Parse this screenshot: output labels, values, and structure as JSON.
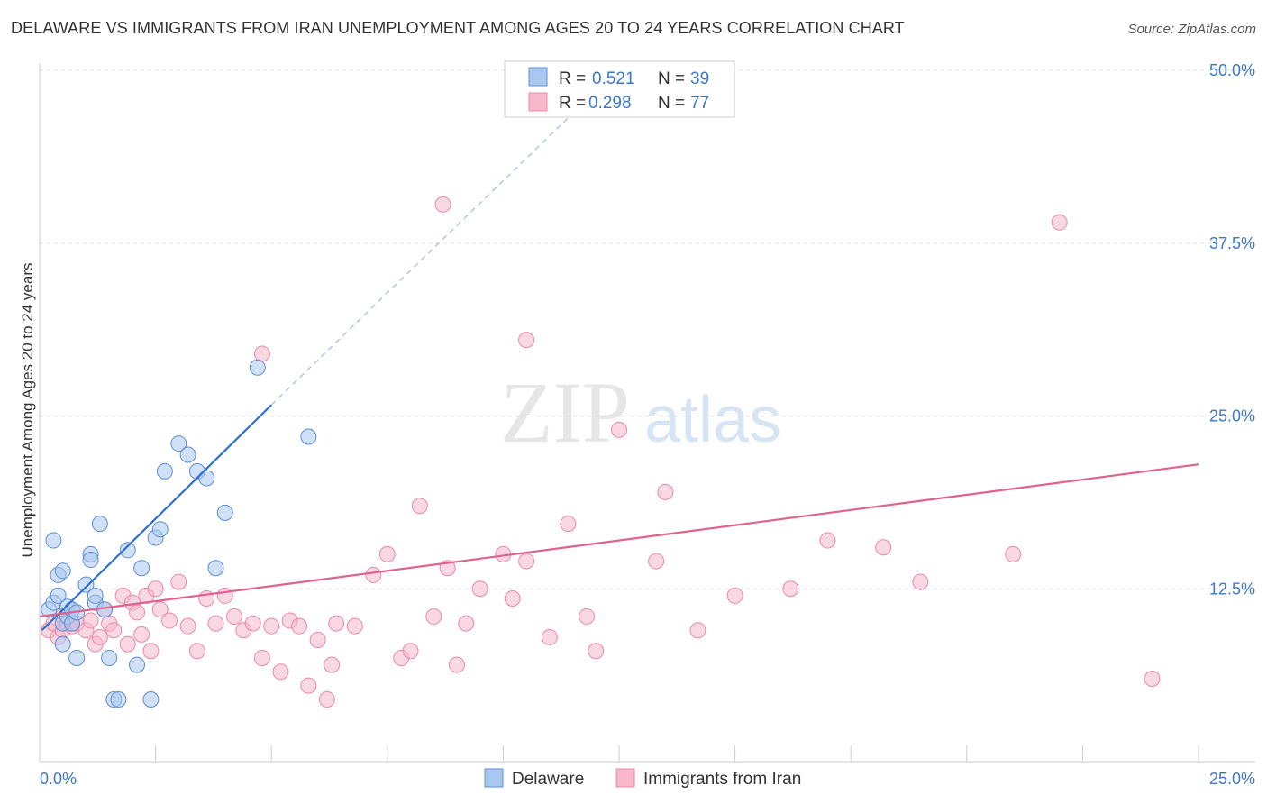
{
  "title": "DELAWARE VS IMMIGRANTS FROM IRAN UNEMPLOYMENT AMONG AGES 20 TO 24 YEARS CORRELATION CHART",
  "source": "Source: ZipAtlas.com",
  "watermark": {
    "zip": "ZIP",
    "atlas": "atlas"
  },
  "colors": {
    "delaware_fill": "#a9c8f0",
    "delaware_stroke": "#5b8fd6",
    "delaware_line": "#2f6fd0",
    "iran_fill": "#f6b8ca",
    "iran_stroke": "#e989a8",
    "iran_line": "#e0628e",
    "tick_label": "#3d78c7",
    "grid": "#dddddd"
  },
  "legend": {
    "r_label": "R =",
    "n_label": "N =",
    "rows": [
      {
        "series": "Delaware",
        "r": "0.521",
        "n": "39"
      },
      {
        "series": "Immigrants from Iran",
        "r": "0.298",
        "n": "77"
      }
    ]
  },
  "chart_data": {
    "type": "scatter",
    "title": "DELAWARE VS IMMIGRANTS FROM IRAN UNEMPLOYMENT AMONG AGES 20 TO 24 YEARS CORRELATION CHART",
    "xlabel": "",
    "ylabel": "Unemployment Among Ages 20 to 24 years",
    "xlim": [
      0,
      25
    ],
    "ylim": [
      0,
      50
    ],
    "x_tick_labels": [
      "0.0%",
      "25.0%"
    ],
    "y_ticks": [
      12.5,
      25.0,
      37.5,
      50.0
    ],
    "y_tick_labels": [
      "12.5%",
      "25.0%",
      "37.5%",
      "50.0%"
    ],
    "grid": true,
    "legend_position": "top-center",
    "series": [
      {
        "name": "Delaware",
        "r": 0.521,
        "n": 39,
        "trend": {
          "x0": 0.05,
          "y0": 9.5,
          "x1": 5.0,
          "y1": 25.8,
          "dashed_to_x": 12.0,
          "dashed_to_y": 48.5
        },
        "points": [
          [
            0.2,
            11.0
          ],
          [
            0.3,
            11.5
          ],
          [
            0.4,
            12.0
          ],
          [
            0.5,
            10.0
          ],
          [
            0.6,
            10.5
          ],
          [
            0.7,
            10.0
          ],
          [
            0.3,
            16.0
          ],
          [
            0.4,
            13.5
          ],
          [
            0.5,
            13.8
          ],
          [
            0.5,
            8.5
          ],
          [
            0.6,
            11.2
          ],
          [
            0.7,
            11.0
          ],
          [
            0.8,
            10.8
          ],
          [
            0.8,
            7.5
          ],
          [
            1.0,
            12.8
          ],
          [
            1.1,
            15.0
          ],
          [
            1.1,
            14.6
          ],
          [
            1.2,
            11.5
          ],
          [
            1.2,
            12.0
          ],
          [
            1.3,
            17.2
          ],
          [
            1.4,
            11.0
          ],
          [
            1.5,
            7.5
          ],
          [
            1.6,
            4.5
          ],
          [
            1.7,
            4.5
          ],
          [
            1.9,
            15.3
          ],
          [
            2.1,
            7.0
          ],
          [
            2.2,
            14.0
          ],
          [
            2.4,
            4.5
          ],
          [
            2.5,
            16.2
          ],
          [
            2.6,
            16.8
          ],
          [
            2.7,
            21.0
          ],
          [
            3.0,
            23.0
          ],
          [
            3.2,
            22.2
          ],
          [
            3.4,
            21.0
          ],
          [
            3.6,
            20.5
          ],
          [
            3.8,
            14.0
          ],
          [
            4.0,
            18.0
          ],
          [
            4.7,
            28.5
          ],
          [
            5.8,
            23.5
          ]
        ]
      },
      {
        "name": "Immigrants from Iran",
        "r": 0.298,
        "n": 77,
        "trend": {
          "x0": 0.0,
          "y0": 10.5,
          "x1": 25.0,
          "y1": 21.5
        },
        "points": [
          [
            0.2,
            9.5
          ],
          [
            0.3,
            10.0
          ],
          [
            0.4,
            9.0
          ],
          [
            0.5,
            10.5
          ],
          [
            0.5,
            9.5
          ],
          [
            0.6,
            10.0
          ],
          [
            0.7,
            9.8
          ],
          [
            0.8,
            10.0
          ],
          [
            1.0,
            9.5
          ],
          [
            1.1,
            10.2
          ],
          [
            1.2,
            8.5
          ],
          [
            1.3,
            9.0
          ],
          [
            1.4,
            11.0
          ],
          [
            1.5,
            10.0
          ],
          [
            1.6,
            9.5
          ],
          [
            1.8,
            12.0
          ],
          [
            1.9,
            8.5
          ],
          [
            2.0,
            11.5
          ],
          [
            2.1,
            10.8
          ],
          [
            2.2,
            9.2
          ],
          [
            2.3,
            12.0
          ],
          [
            2.4,
            8.0
          ],
          [
            2.5,
            12.5
          ],
          [
            2.6,
            11.0
          ],
          [
            2.8,
            10.2
          ],
          [
            3.0,
            13.0
          ],
          [
            3.2,
            9.8
          ],
          [
            3.4,
            8.0
          ],
          [
            3.6,
            11.8
          ],
          [
            3.8,
            10.0
          ],
          [
            4.0,
            12.0
          ],
          [
            4.2,
            10.5
          ],
          [
            4.4,
            9.5
          ],
          [
            4.6,
            10.0
          ],
          [
            4.8,
            7.5
          ],
          [
            5.0,
            9.8
          ],
          [
            5.2,
            6.5
          ],
          [
            5.4,
            10.2
          ],
          [
            5.6,
            9.8
          ],
          [
            5.8,
            5.5
          ],
          [
            6.0,
            8.8
          ],
          [
            6.2,
            4.5
          ],
          [
            6.3,
            7.0
          ],
          [
            6.4,
            10.0
          ],
          [
            6.8,
            9.8
          ],
          [
            7.2,
            13.5
          ],
          [
            7.5,
            15.0
          ],
          [
            7.8,
            7.5
          ],
          [
            8.0,
            8.0
          ],
          [
            8.2,
            18.5
          ],
          [
            8.5,
            10.5
          ],
          [
            8.8,
            14.0
          ],
          [
            9.0,
            7.0
          ],
          [
            9.2,
            10.0
          ],
          [
            9.5,
            12.5
          ],
          [
            10.0,
            15.0
          ],
          [
            10.2,
            11.8
          ],
          [
            10.5,
            14.5
          ],
          [
            11.0,
            9.0
          ],
          [
            11.4,
            17.2
          ],
          [
            11.8,
            10.5
          ],
          [
            12.0,
            8.0
          ],
          [
            12.5,
            24.0
          ],
          [
            13.3,
            14.5
          ],
          [
            13.5,
            19.5
          ],
          [
            14.2,
            9.5
          ],
          [
            15.0,
            12.0
          ],
          [
            16.2,
            12.5
          ],
          [
            17.0,
            16.0
          ],
          [
            18.2,
            15.5
          ],
          [
            19.0,
            13.0
          ],
          [
            21.0,
            15.0
          ],
          [
            22.0,
            39.0
          ],
          [
            8.7,
            40.3
          ],
          [
            10.5,
            30.5
          ],
          [
            4.8,
            29.5
          ],
          [
            24.0,
            6.0
          ]
        ]
      }
    ]
  }
}
